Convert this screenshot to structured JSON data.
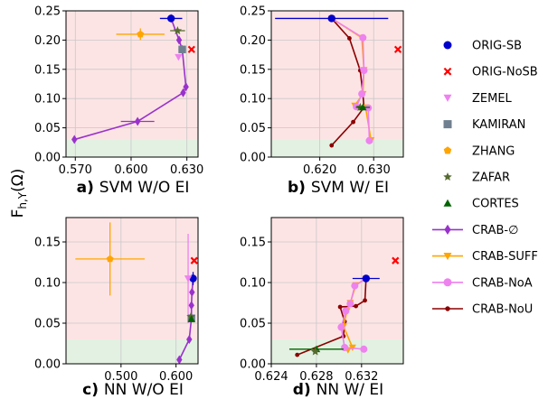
{
  "figure": {
    "ylabel": "F_{h,Y}(Ω)"
  },
  "legend": {
    "entries": [
      {
        "name": "ORIG-SB",
        "color": "#0000cc",
        "marker": "circle"
      },
      {
        "name": "ORIG-NoSB",
        "color": "#ff0000",
        "marker": "x"
      },
      {
        "name": "ZEMEL",
        "color": "#ee82ee",
        "marker": "triangle-down"
      },
      {
        "name": "KAMIRAN",
        "color": "#708090",
        "marker": "square"
      },
      {
        "name": "ZHANG",
        "color": "#ffa500",
        "marker": "pentagon"
      },
      {
        "name": "ZAFAR",
        "color": "#556b2f",
        "marker": "star"
      },
      {
        "name": "CORTES",
        "color": "#006400",
        "marker": "triangle-up"
      },
      {
        "name": "CRAB-∅",
        "color": "#9932cc",
        "marker": "diamond",
        "line": true
      },
      {
        "name": "CRAB-SUFF",
        "color": "#ffa500",
        "marker": "triangle-down",
        "line": true
      },
      {
        "name": "CRAB-NoA",
        "color": "#ee82ee",
        "marker": "circle",
        "line": true
      },
      {
        "name": "CRAB-NoU",
        "color": "#8b0000",
        "marker": "dot",
        "line": true
      }
    ]
  },
  "chart_data": [
    {
      "type": "scatter",
      "title_letter": "a)",
      "title_text": "SVM W/O EI",
      "xlim": [
        0.565,
        0.636
      ],
      "ylim": [
        0,
        0.25
      ],
      "xticks": [
        0.57,
        0.6,
        0.63
      ],
      "xtick_labels": [
        "0.570",
        "0.600",
        "0.630"
      ],
      "yticks": [
        0,
        0.05,
        0.1,
        0.15,
        0.2,
        0.25
      ],
      "ytick_labels": [
        "0.00",
        "0.05",
        "0.10",
        "0.15",
        "0.20",
        "0.25"
      ],
      "green_band": [
        0,
        0.03
      ],
      "red_band": [
        0.03,
        0.25
      ],
      "points": [
        {
          "series": "ORIG-SB",
          "x": 0.6215,
          "y": 0.237,
          "xerr": 0.006
        },
        {
          "series": "ORIG-NoSB",
          "x": 0.6325,
          "y": 0.184
        },
        {
          "series": "ZEMEL",
          "x": 0.6255,
          "y": 0.171
        },
        {
          "series": "KAMIRAN",
          "x": 0.6275,
          "y": 0.184,
          "xerr": 0.002
        },
        {
          "series": "ZHANG",
          "x": 0.605,
          "y": 0.21,
          "xerr": 0.013,
          "yerr": 0.01
        },
        {
          "series": "ZAFAR",
          "x": 0.625,
          "y": 0.216,
          "xerr": 0.004
        }
      ],
      "lines": [
        {
          "series": "CRAB-∅",
          "xerr": [
            0,
            0.009,
            0,
            0,
            0,
            0,
            0
          ],
          "x": [
            0.5695,
            0.6035,
            0.628,
            0.6295,
            0.6275,
            0.6258,
            0.6215
          ],
          "y": [
            0.03,
            0.061,
            0.11,
            0.12,
            0.184,
            0.2,
            0.237
          ]
        }
      ]
    },
    {
      "type": "scatter",
      "title_letter": "b)",
      "title_text": "SVM W/ EI",
      "xlim": [
        0.611,
        0.6355
      ],
      "ylim": [
        0,
        0.25
      ],
      "xticks": [
        0.62,
        0.63
      ],
      "xtick_labels": [
        "0.620",
        "0.630"
      ],
      "yticks": [
        0,
        0.05,
        0.1,
        0.15,
        0.2,
        0.25
      ],
      "ytick_labels": [
        "0.00",
        "0.05",
        "0.10",
        "0.15",
        "0.20",
        "0.25"
      ],
      "green_band": [
        0,
        0.03
      ],
      "red_band": [
        0.03,
        0.25
      ],
      "points": [
        {
          "series": "ORIG-SB",
          "x": 0.6222,
          "y": 0.237,
          "xerr": 0.0105
        },
        {
          "series": "ORIG-NoSB",
          "x": 0.6345,
          "y": 0.184
        },
        {
          "series": "ZEMEL",
          "x": 0.628,
          "y": 0.148
        },
        {
          "series": "ZAFAR",
          "x": 0.6275,
          "y": 0.085
        },
        {
          "series": "CORTES",
          "x": 0.628,
          "y": 0.085,
          "xerr": 0.0013
        }
      ],
      "lines": [
        {
          "series": "CRAB-NoU",
          "x": [
            0.6222,
            0.6255,
            0.6275,
            0.628,
            0.6282,
            0.6262,
            0.6222
          ],
          "y": [
            0.237,
            0.203,
            0.148,
            0.108,
            0.085,
            0.06,
            0.02
          ]
        },
        {
          "series": "CRAB-SUFF",
          "x": [
            0.6222,
            0.6278,
            0.6282,
            0.628,
            0.6265,
            0.6285,
            0.6295
          ],
          "y": [
            0.237,
            0.204,
            0.149,
            0.108,
            0.088,
            0.085,
            0.029
          ]
        },
        {
          "series": "CRAB-NoA",
          "x": [
            0.6222,
            0.628,
            0.6282,
            0.6278,
            0.6268,
            0.629,
            0.6292
          ],
          "y": [
            0.237,
            0.204,
            0.148,
            0.108,
            0.086,
            0.084,
            0.028
          ]
        }
      ]
    },
    {
      "type": "scatter",
      "title_letter": "c)",
      "title_text": "NN W/O EI",
      "xlim": [
        0.4,
        0.64
      ],
      "ylim": [
        0,
        0.18
      ],
      "xticks": [
        0.5,
        0.6
      ],
      "xtick_labels": [
        "0.500",
        "0.600"
      ],
      "yticks": [
        0,
        0.05,
        0.1,
        0.15
      ],
      "ytick_labels": [
        "0.00",
        "0.05",
        "0.10",
        "0.15"
      ],
      "green_band": [
        0,
        0.03
      ],
      "red_band": [
        0.03,
        0.18
      ],
      "points": [
        {
          "series": "ORIG-SB",
          "x": 0.631,
          "y": 0.105,
          "yerr": 0.008
        },
        {
          "series": "ORIG-NoSB",
          "x": 0.633,
          "y": 0.127
        },
        {
          "series": "ZEMEL",
          "x": 0.622,
          "y": 0.105,
          "yerr": 0.055
        },
        {
          "series": "KAMIRAN",
          "x": 0.628,
          "y": 0.056,
          "yerr": 0.003
        },
        {
          "series": "ZHANG",
          "x": 0.48,
          "y": 0.129,
          "xerr": 0.063,
          "yerr": 0.045
        },
        {
          "series": "ZAFAR",
          "x": 0.627,
          "y": 0.058
        },
        {
          "series": "CORTES",
          "x": 0.628,
          "y": 0.055
        }
      ],
      "lines": [
        {
          "series": "CRAB-∅",
          "x": [
            0.606,
            0.624,
            0.628,
            0.628,
            0.629,
            0.631
          ],
          "y": [
            0.005,
            0.03,
            0.056,
            0.072,
            0.088,
            0.105
          ]
        }
      ]
    },
    {
      "type": "scatter",
      "title_letter": "d)",
      "title_text": "NN W/ EI",
      "xlim": [
        0.624,
        0.6357
      ],
      "ylim": [
        0,
        0.18
      ],
      "xticks": [
        0.624,
        0.628,
        0.632
      ],
      "xtick_labels": [
        "0.624",
        "0.628",
        "0.632"
      ],
      "yticks": [
        0,
        0.05,
        0.1,
        0.15
      ],
      "ytick_labels": [
        "0.00",
        "0.05",
        "0.10",
        "0.15"
      ],
      "green_band": [
        0,
        0.03
      ],
      "red_band": [
        0.03,
        0.18
      ],
      "points": [
        {
          "series": "ORIG-SB",
          "x": 0.6324,
          "y": 0.105,
          "xerr": 0.0012
        },
        {
          "series": "ORIG-NoSB",
          "x": 0.635,
          "y": 0.127
        },
        {
          "series": "CORTES",
          "x": 0.628,
          "y": 0.018,
          "xerr": 0.0024
        },
        {
          "series": "ZAFAR",
          "x": 0.6279,
          "y": 0.015
        }
      ],
      "lines": [
        {
          "series": "CRAB-NoU",
          "x": [
            0.6324,
            0.6323,
            0.6315,
            0.6301,
            0.6305,
            0.6304,
            0.6263
          ],
          "y": [
            0.105,
            0.078,
            0.071,
            0.07,
            0.052,
            0.034,
            0.011
          ]
        },
        {
          "series": "CRAB-SUFF",
          "x": [
            0.6324,
            0.6315,
            0.631,
            0.6307,
            0.6304,
            0.6312,
            0.6308
          ],
          "y": [
            0.105,
            0.097,
            0.075,
            0.065,
            0.046,
            0.02,
            0.017
          ]
        },
        {
          "series": "CRAB-NoA",
          "x": [
            0.6324,
            0.6314,
            0.631,
            0.6306,
            0.6302,
            0.6305,
            0.6322
          ],
          "y": [
            0.105,
            0.096,
            0.074,
            0.065,
            0.045,
            0.02,
            0.018
          ]
        }
      ]
    }
  ]
}
